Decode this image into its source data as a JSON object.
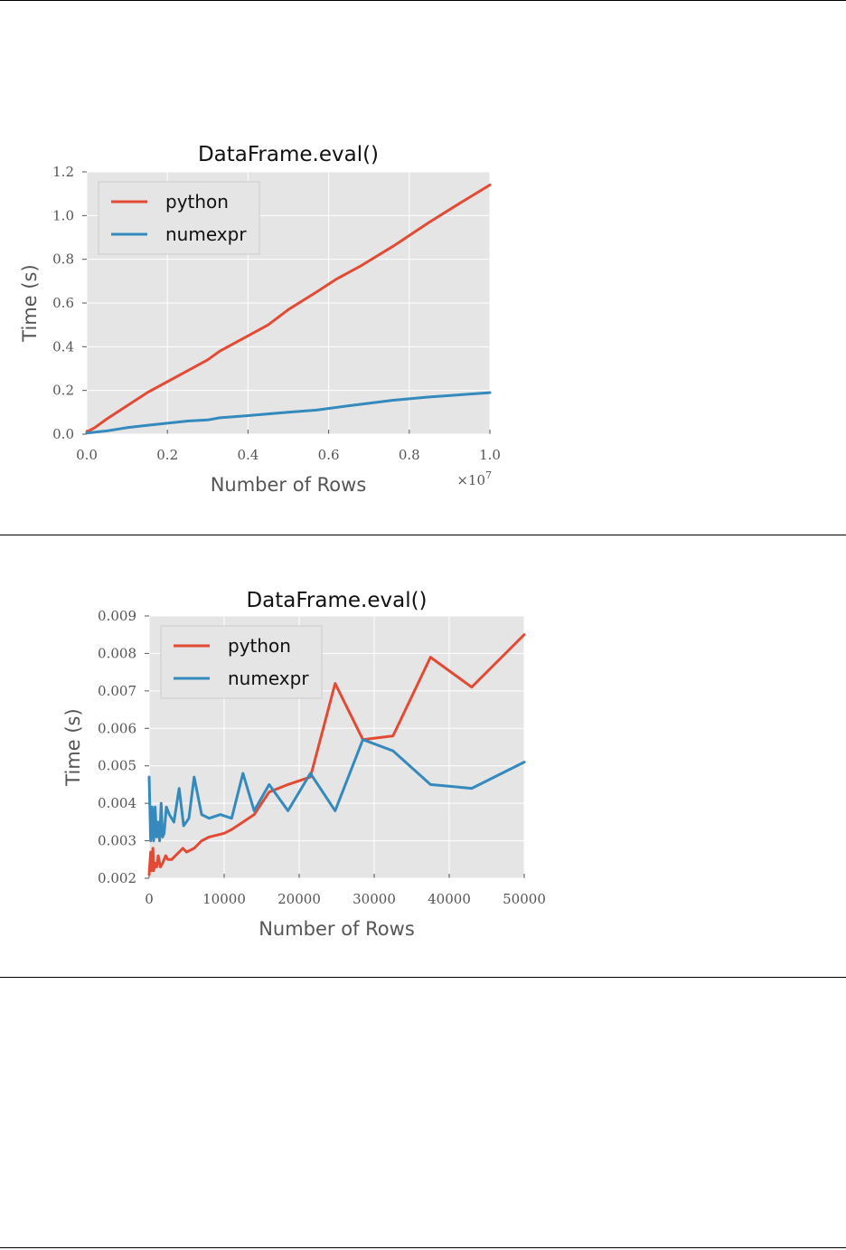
{
  "chart_data": [
    {
      "type": "line",
      "title": "DataFrame.eval()",
      "xlabel": "Number of Rows",
      "ylabel": "Time (s)",
      "x_offset_label": "×10",
      "x_offset_exponent": "7",
      "xlim": [
        0,
        1.0
      ],
      "ylim": [
        0,
        1.2
      ],
      "xticks": [
        "0.0",
        "0.2",
        "0.4",
        "0.6",
        "0.8",
        "1.0"
      ],
      "yticks": [
        "0.0",
        "0.2",
        "0.4",
        "0.6",
        "0.8",
        "1.0",
        "1.2"
      ],
      "grid": true,
      "legend_position": "top-left",
      "series": [
        {
          "name": "python",
          "color": "#e24a33",
          "x": [
            0.0,
            0.02,
            0.05,
            0.1,
            0.15,
            0.2,
            0.25,
            0.3,
            0.33,
            0.4,
            0.45,
            0.5,
            0.57,
            0.62,
            0.68,
            0.76,
            0.85,
            0.92,
            1.0
          ],
          "y": [
            0.01,
            0.03,
            0.07,
            0.13,
            0.19,
            0.24,
            0.29,
            0.34,
            0.38,
            0.45,
            0.5,
            0.57,
            0.65,
            0.71,
            0.77,
            0.86,
            0.97,
            1.05,
            1.14
          ]
        },
        {
          "name": "numexpr",
          "color": "#348abd",
          "x": [
            0.0,
            0.05,
            0.1,
            0.15,
            0.2,
            0.25,
            0.3,
            0.33,
            0.4,
            0.5,
            0.57,
            0.65,
            0.76,
            0.85,
            1.0
          ],
          "y": [
            0.005,
            0.015,
            0.03,
            0.04,
            0.05,
            0.06,
            0.065,
            0.075,
            0.085,
            0.1,
            0.11,
            0.13,
            0.155,
            0.17,
            0.19
          ]
        }
      ]
    },
    {
      "type": "line",
      "title": "DataFrame.eval()",
      "xlabel": "Number of Rows",
      "ylabel": "Time (s)",
      "xlim": [
        0,
        50000
      ],
      "ylim": [
        0.002,
        0.009
      ],
      "xticks": [
        "0",
        "10000",
        "20000",
        "30000",
        "40000",
        "50000"
      ],
      "yticks": [
        "0.002",
        "0.003",
        "0.004",
        "0.005",
        "0.006",
        "0.007",
        "0.008",
        "0.009"
      ],
      "grid": true,
      "legend_position": "top-left",
      "series": [
        {
          "name": "python",
          "color": "#e24a33",
          "x": [
            0,
            200,
            300,
            500,
            600,
            800,
            1000,
            1200,
            1500,
            1800,
            2200,
            2500,
            3000,
            3500,
            4500,
            5000,
            6000,
            7000,
            8000,
            10000,
            11000,
            12500,
            14000,
            16000,
            18500,
            21500,
            24800,
            28500,
            32500,
            37500,
            43000,
            50000
          ],
          "y": [
            0.0021,
            0.0027,
            0.0022,
            0.0028,
            0.0022,
            0.0024,
            0.0023,
            0.0026,
            0.0023,
            0.0024,
            0.0026,
            0.0025,
            0.0025,
            0.0026,
            0.0028,
            0.0027,
            0.0028,
            0.003,
            0.0031,
            0.0032,
            0.0033,
            0.0035,
            0.0037,
            0.0043,
            0.0045,
            0.0047,
            0.0072,
            0.0057,
            0.0058,
            0.0079,
            0.0071,
            0.0085
          ]
        },
        {
          "name": "numexpr",
          "color": "#348abd",
          "x": [
            0,
            200,
            400,
            600,
            800,
            1000,
            1200,
            1400,
            1600,
            1800,
            2000,
            2300,
            2700,
            3300,
            4000,
            4600,
            5300,
            6000,
            7000,
            8000,
            9500,
            11000,
            12500,
            14000,
            16000,
            18500,
            21500,
            24800,
            28500,
            32500,
            37500,
            43000,
            50000
          ],
          "y": [
            0.0047,
            0.003,
            0.0039,
            0.003,
            0.0039,
            0.0031,
            0.0035,
            0.003,
            0.004,
            0.0031,
            0.0032,
            0.0039,
            0.0037,
            0.0035,
            0.0044,
            0.0034,
            0.0036,
            0.0047,
            0.0037,
            0.0036,
            0.0037,
            0.0036,
            0.0048,
            0.0038,
            0.0045,
            0.0038,
            0.0048,
            0.0038,
            0.0057,
            0.0054,
            0.0045,
            0.0044,
            0.0051
          ]
        }
      ]
    }
  ]
}
